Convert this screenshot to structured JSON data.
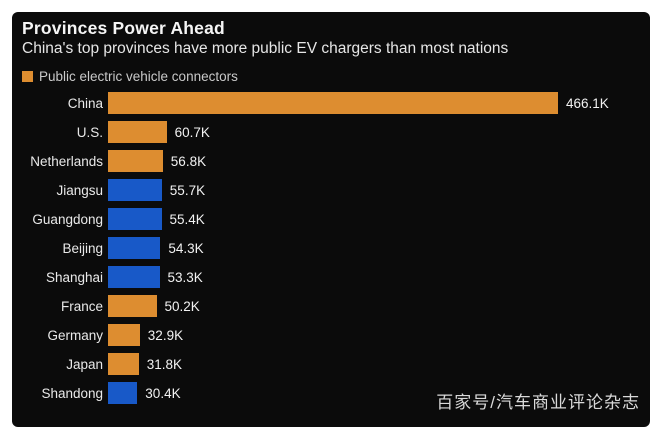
{
  "header": {
    "title": "Provinces Power Ahead",
    "subtitle": "China's top provinces have more public EV chargers than most nations"
  },
  "legend": {
    "label": "Public electric vehicle connectors",
    "swatch_color": "#dd8d30"
  },
  "watermark": "百家号/汽车商业评论杂志",
  "colors": {
    "background": "#0b0b0b",
    "frame": "#ffffff",
    "orange": "#dd8d30",
    "blue": "#1859c8",
    "title_text": "#f5f5f5",
    "subtitle_text": "#e6e6e6",
    "legend_text": "#c9c9c9",
    "label_text": "#e9e9e9",
    "value_text": "#f2f2f2",
    "watermark_text": "#d9d9d9"
  },
  "chart_data": {
    "type": "bar",
    "orientation": "horizontal",
    "title": "Provinces Power Ahead",
    "subtitle": "China's top provinces have more public EV chargers than most nations",
    "legend": [
      "Public electric vehicle connectors"
    ],
    "legend_position": "top-left",
    "grid": false,
    "unit": "K connectors",
    "xlim": [
      0,
      466.1
    ],
    "categories": [
      "China",
      "U.S.",
      "Netherlands",
      "Jiangsu",
      "Guangdong",
      "Beijing",
      "Shanghai",
      "France",
      "Germany",
      "Japan",
      "Shandong"
    ],
    "values": [
      466.1,
      60.7,
      56.8,
      55.7,
      55.4,
      54.3,
      53.3,
      50.2,
      32.9,
      31.8,
      30.4
    ],
    "value_labels": [
      "466.1K",
      "60.7K",
      "56.8K",
      "55.7K",
      "55.4K",
      "54.3K",
      "53.3K",
      "50.2K",
      "32.9K",
      "31.8K",
      "30.4K"
    ],
    "bar_colors": [
      "orange",
      "orange",
      "orange",
      "blue",
      "blue",
      "blue",
      "blue",
      "orange",
      "orange",
      "orange",
      "blue"
    ],
    "color_meaning": {
      "orange": "nation",
      "blue": "Chinese province"
    }
  }
}
